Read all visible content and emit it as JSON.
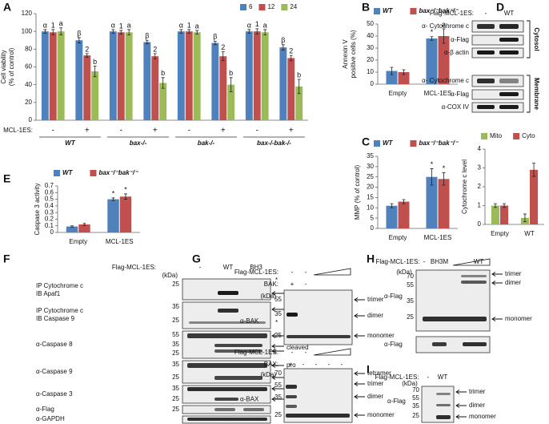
{
  "panel_labels": [
    "A",
    "B",
    "C",
    "D",
    "E",
    "F",
    "G",
    "H",
    "I"
  ],
  "chart_data": [
    {
      "type": "bar",
      "ylabel": [
        "Cell viability",
        "(% of control)"
      ],
      "treatment_label": "MCL-1ES:",
      "categories": [
        "-",
        "+",
        "-",
        "+",
        "-",
        "+",
        "-",
        "+"
      ],
      "groups": [
        "WT",
        "bax-/-",
        "bak-/-",
        "bax-/-bak-/-"
      ],
      "series": [
        {
          "name": "6",
          "color": "#4f81bd",
          "values": [
            100,
            90,
            100,
            88,
            100,
            87,
            100,
            82
          ],
          "errors": [
            2,
            3,
            2,
            2,
            2,
            2,
            2,
            3
          ],
          "markers": [
            "α",
            "β",
            "α",
            "β",
            "α",
            "β",
            "α",
            "β"
          ]
        },
        {
          "name": "12",
          "color": "#c0504d",
          "values": [
            99,
            73,
            99,
            72,
            100,
            72,
            100,
            70
          ],
          "errors": [
            3,
            2,
            2,
            3,
            2,
            5,
            3,
            3
          ],
          "markers": [
            "1",
            "2",
            "1",
            "2",
            "1",
            "2",
            "1",
            "2"
          ]
        },
        {
          "name": "24",
          "color": "#9bbb59",
          "values": [
            100,
            55,
            99,
            42,
            99,
            40,
            99,
            38
          ],
          "errors": [
            4,
            6,
            3,
            6,
            2,
            8,
            3,
            8
          ],
          "markers": [
            "a",
            "b",
            "a",
            "b",
            "a",
            "b",
            "a",
            "b"
          ]
        }
      ],
      "ylim": [
        0,
        120
      ],
      "yticks": [
        0,
        20,
        40,
        60,
        80,
        100,
        120
      ],
      "legend": "top-right"
    },
    {
      "type": "bar",
      "ylabel": [
        "Annexin V",
        "positive cells (%)"
      ],
      "categories": [
        "Empty",
        "MCL-1ES"
      ],
      "series": [
        {
          "name": "WT",
          "color": "#4f81bd",
          "values": [
            11,
            38
          ],
          "errors": [
            3,
            1.5
          ],
          "markers": [
            null,
            "*"
          ]
        },
        {
          "name": "bax⁻/⁻bak⁻/⁻",
          "color": "#c0504d",
          "values": [
            10,
            40
          ],
          "errors": [
            2,
            6
          ],
          "markers": [
            null,
            "a"
          ]
        }
      ],
      "ylim": [
        0,
        50
      ],
      "yticks": [
        0,
        10,
        20,
        30,
        40,
        50
      ],
      "legend": "top"
    },
    {
      "type": "bar",
      "ylabel": [
        "MMP (% of control)"
      ],
      "categories": [
        "Empty",
        "MCL-1ES"
      ],
      "series": [
        {
          "name": "WT",
          "color": "#4f81bd",
          "values": [
            11,
            25
          ],
          "errors": [
            1,
            4
          ],
          "markers": [
            null,
            "*"
          ]
        },
        {
          "name": "bax⁻/⁻bak⁻/⁻",
          "color": "#c0504d",
          "values": [
            13,
            24
          ],
          "errors": [
            1,
            3
          ],
          "markers": [
            null,
            "*"
          ]
        }
      ],
      "ylim": [
        0,
        35
      ],
      "yticks": [
        0,
        5,
        10,
        15,
        20,
        25,
        30,
        35
      ],
      "legend": "top"
    },
    {
      "type": "bar",
      "ylabel": [
        "Caspase 3 activity"
      ],
      "categories": [
        "Empty",
        "MCL-1ES"
      ],
      "series": [
        {
          "name": "WT",
          "color": "#4f81bd",
          "values": [
            0.09,
            0.5
          ],
          "errors": [
            0.01,
            0.02
          ],
          "markers": [
            null,
            "*"
          ]
        },
        {
          "name": "bax⁻/⁻bak⁻/⁻",
          "color": "#c0504d",
          "values": [
            0.12,
            0.54
          ],
          "errors": [
            0.015,
            0.04
          ],
          "markers": [
            null,
            "*"
          ]
        }
      ],
      "ylim": [
        0,
        0.7
      ],
      "yticks": [
        0,
        0.1,
        0.2,
        0.3,
        0.4,
        0.5,
        0.6,
        0.7
      ],
      "legend": "top"
    },
    {
      "type": "bar",
      "ylabel": [
        "Cytochrome c level"
      ],
      "categories": [
        "Empty",
        "WT"
      ],
      "series": [
        {
          "name": "Mito",
          "color": "#9bbb59",
          "values": [
            1,
            0.35
          ],
          "errors": [
            0.1,
            0.2
          ],
          "markers": [
            null,
            null
          ]
        },
        {
          "name": "Cyto",
          "color": "#c0504d",
          "values": [
            1,
            2.9
          ],
          "errors": [
            0.1,
            0.35
          ],
          "markers": [
            null,
            null
          ]
        }
      ],
      "ylim": [
        0,
        4
      ],
      "yticks": [
        0,
        1,
        2,
        3,
        4
      ],
      "legend": "top"
    }
  ],
  "blots": {
    "D": {
      "header": "Flag-MCL-1ES:",
      "lanes": [
        "-",
        "WT"
      ],
      "cytosol_rows": [
        "α- Cytochrome c",
        "α-Flag",
        "α-β actin"
      ],
      "cytosol": "Cytosol",
      "membrane_rows": [
        "α- Cytochrome c",
        "α-Flag",
        "α-COX IV"
      ],
      "membrane": "Membrane"
    },
    "F": {
      "header": "Flag-MCL-1ES:",
      "lanes": [
        "-",
        "WT",
        "BH3"
      ],
      "kda": "(kDa)",
      "rows": [
        {
          "label": [
            "IP Cytochrome c",
            "IB Apaf1"
          ],
          "mw": [
            25
          ],
          "notes": [
            "*"
          ]
        },
        {
          "label": [
            "IP Cytochrome c",
            "IB Caspase 9"
          ],
          "mw": [
            35,
            25
          ],
          "notes": [
            "*"
          ]
        },
        {
          "label": [
            "α-Caspase 8"
          ],
          "mw": [
            55,
            35,
            25
          ],
          "notes": [
            "pro",
            "cleaved"
          ]
        },
        {
          "label": [
            "α-Caspase 9"
          ],
          "mw": [
            35,
            25
          ],
          "notes": [
            "pro",
            "cleaved"
          ]
        },
        {
          "label": [
            "α-Caspase 3"
          ],
          "mw": [
            35,
            25
          ],
          "notes": [
            "pro",
            "cleaved"
          ]
        },
        {
          "label": [
            "α-Flag"
          ],
          "mw": [
            25
          ],
          "notes": []
        },
        {
          "label": [
            "α-GAPDH"
          ],
          "mw": [],
          "notes": []
        }
      ]
    },
    "G": {
      "top": {
        "header": "Flag-MCL-1ES:",
        "lanes": [
          "-",
          "-"
        ],
        "protein": "BAK:",
        "protein_lanes": [
          "+",
          "-"
        ],
        "kda": "(kDa)",
        "mw": [
          55,
          35,
          25
        ],
        "notes": [
          "trimer",
          "dimer",
          "monomer"
        ],
        "label": "α-BAK"
      },
      "bottom": {
        "header": "Flag-MCL-1ES:",
        "lanes": [
          "-",
          "-"
        ],
        "protein": "BAX:",
        "protein_lanes": [
          "+",
          "-",
          "-",
          "-",
          "-"
        ],
        "kda": "(kDa)",
        "mw": [
          70,
          55,
          35,
          25
        ],
        "notes": [
          "tetramer",
          "trimer",
          "dimer",
          "monomer"
        ],
        "label": "α-BAX"
      }
    },
    "H": {
      "header": "Flag-MCL-1ES:",
      "lanes": [
        "-",
        "BH3M",
        "WT"
      ],
      "kda": "(kDa)",
      "mw": [
        70,
        55,
        35,
        25
      ],
      "notes": [
        "trimer",
        "dimer",
        "monomer"
      ],
      "labels": [
        "α-Flag",
        "α-Flag"
      ]
    },
    "I": {
      "header": "Flag-MCL-1ES:",
      "lanes": [
        "-",
        "WT"
      ],
      "kda": "(kDa)",
      "mw": [
        70,
        55,
        35,
        25
      ],
      "notes": [
        "trimer",
        "dimer",
        "monomer"
      ],
      "label": "α-Flag"
    }
  }
}
